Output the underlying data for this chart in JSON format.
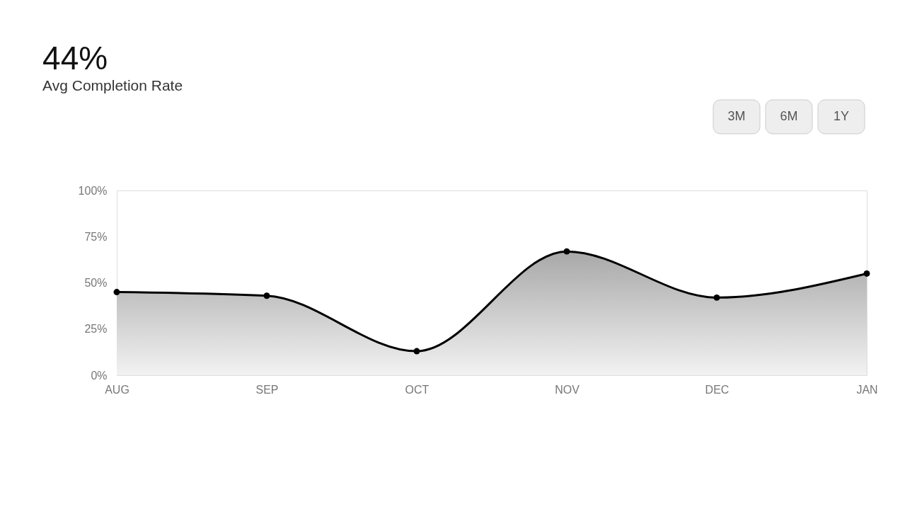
{
  "chart_data": {
    "type": "area",
    "title": "44%",
    "subtitle": "Avg Completion Rate",
    "annotations": [
      "3M",
      "6M",
      "1Y"
    ],
    "categories": [
      "AUG",
      "SEP",
      "OCT",
      "NOV",
      "DEC",
      "JAN"
    ],
    "series": [
      {
        "color": "#000000",
        "values": [
          45,
          43,
          13,
          67,
          42,
          55
        ]
      }
    ],
    "ylim": [
      0,
      100
    ],
    "yticks": [
      {
        "value": 0,
        "label": "0%"
      },
      {
        "value": 25,
        "label": "25%"
      },
      {
        "value": 50,
        "label": "50%"
      },
      {
        "value": 75,
        "label": "75%"
      },
      {
        "value": 100,
        "label": "100%"
      }
    ],
    "grid": false,
    "marker": "circle"
  }
}
